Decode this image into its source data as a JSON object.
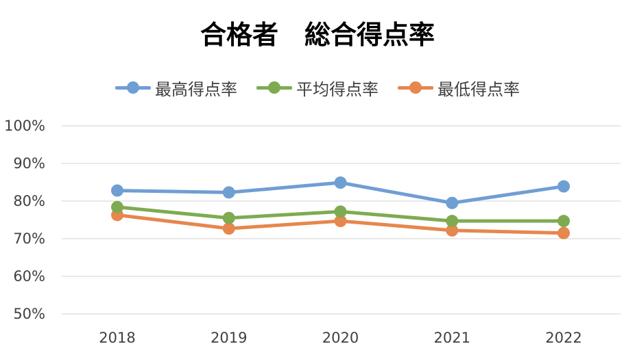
{
  "chart_data": {
    "type": "line",
    "title": "合格者　総合得点率",
    "categories": [
      "2018",
      "2019",
      "2020",
      "2021",
      "2022"
    ],
    "y_ticks": [
      "100%",
      "90%",
      "80%",
      "70%",
      "60%",
      "50%"
    ],
    "ylim": [
      50,
      100
    ],
    "y_unit": "%",
    "grid": true,
    "legend_position": "top",
    "series": [
      {
        "name": "最高得点率",
        "color": "#6f9ed3",
        "values": [
          82.8,
          82.3,
          84.9,
          79.5,
          83.9
        ]
      },
      {
        "name": "平均得点率",
        "color": "#7eab51",
        "values": [
          78.4,
          75.5,
          77.2,
          74.7,
          74.7
        ]
      },
      {
        "name": "最低得点率",
        "color": "#e6874d",
        "values": [
          76.3,
          72.7,
          74.7,
          72.2,
          71.5
        ]
      }
    ]
  }
}
